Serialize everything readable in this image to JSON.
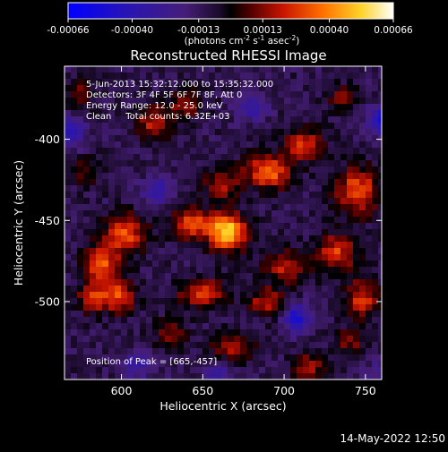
{
  "chart_data": {
    "type": "heatmap",
    "title": "Reconstructed RHESSI Image",
    "xlabel": "Heliocentric X (arcsec)",
    "ylabel": "Heliocentric Y (arcsec)",
    "x_ticks": [
      "600",
      "650",
      "700",
      "750"
    ],
    "y_ticks": [
      "-400",
      "-450",
      "-500"
    ],
    "xlim": [
      565,
      760
    ],
    "ylim": [
      -548,
      -355
    ],
    "colorbar": {
      "ticks": [
        "-0.00066",
        "-0.00040",
        "-0.00013",
        "0.00013",
        "0.00040",
        "0.00066"
      ],
      "range": [
        -0.00066,
        0.00066
      ],
      "units_label": "(photons cm<sup>-2</sup> s<sup>-1</sup> asec<sup>-2</sup>)",
      "units_text": "(photons cm-2 s-1 asec-2)"
    },
    "annotations": [
      "5-Jun-2013 15:32:12.000 to 15:35:32.000",
      "Detectors: 3F 4F 5F 6F 7F 8F, Att 0",
      "Energy Range: 12.0 - 25.0 keV",
      "Clean     Total counts: 6.32E+03"
    ],
    "peak_label": "Position of Peak = [665,-457]",
    "peak": {
      "x": 665,
      "y": -457
    },
    "timestamp": "14-May-2022 12:50",
    "hotspots": [
      {
        "x": 665,
        "y": -457,
        "amp": 0.00066,
        "sx": 8,
        "sy": 8
      },
      {
        "x": 642,
        "y": -452,
        "amp": 0.00042,
        "sx": 8,
        "sy": 7
      },
      {
        "x": 602,
        "y": -458,
        "amp": 0.0004,
        "sx": 9,
        "sy": 8
      },
      {
        "x": 588,
        "y": -478,
        "amp": 0.00042,
        "sx": 8,
        "sy": 9
      },
      {
        "x": 598,
        "y": -497,
        "amp": 0.00038,
        "sx": 7,
        "sy": 7
      },
      {
        "x": 582,
        "y": -498,
        "amp": 0.00032,
        "sx": 6,
        "sy": 6
      },
      {
        "x": 690,
        "y": -420,
        "amp": 0.00045,
        "sx": 10,
        "sy": 7
      },
      {
        "x": 712,
        "y": -403,
        "amp": 0.00035,
        "sx": 8,
        "sy": 7
      },
      {
        "x": 662,
        "y": -428,
        "amp": 0.00028,
        "sx": 8,
        "sy": 6
      },
      {
        "x": 745,
        "y": -432,
        "amp": 0.00042,
        "sx": 9,
        "sy": 10
      },
      {
        "x": 732,
        "y": -470,
        "amp": 0.00036,
        "sx": 9,
        "sy": 8
      },
      {
        "x": 748,
        "y": -498,
        "amp": 0.00035,
        "sx": 7,
        "sy": 8
      },
      {
        "x": 700,
        "y": -478,
        "amp": 0.0003,
        "sx": 9,
        "sy": 7
      },
      {
        "x": 650,
        "y": -495,
        "amp": 0.00038,
        "sx": 10,
        "sy": 6
      },
      {
        "x": 690,
        "y": -500,
        "amp": 0.00032,
        "sx": 8,
        "sy": 6
      },
      {
        "x": 620,
        "y": -390,
        "amp": 0.0003,
        "sx": 8,
        "sy": 7
      },
      {
        "x": 640,
        "y": -378,
        "amp": 0.00026,
        "sx": 7,
        "sy": 6
      },
      {
        "x": 668,
        "y": -528,
        "amp": 0.00028,
        "sx": 9,
        "sy": 6
      },
      {
        "x": 630,
        "y": -520,
        "amp": 0.00024,
        "sx": 7,
        "sy": 6
      },
      {
        "x": 715,
        "y": -540,
        "amp": 0.00026,
        "sx": 7,
        "sy": 6
      },
      {
        "x": 740,
        "y": -525,
        "amp": 0.00022,
        "sx": 6,
        "sy": 6
      },
      {
        "x": 578,
        "y": -420,
        "amp": 0.00018,
        "sx": 6,
        "sy": 6
      },
      {
        "x": 575,
        "y": -372,
        "amp": 0.00022,
        "sx": 6,
        "sy": 6
      },
      {
        "x": 735,
        "y": -375,
        "amp": 0.0002,
        "sx": 6,
        "sy": 6
      },
      {
        "x": 622,
        "y": -432,
        "amp": -0.00026,
        "sx": 7,
        "sy": 6
      },
      {
        "x": 760,
        "y": -388,
        "amp": -0.0004,
        "sx": 6,
        "sy": 6
      },
      {
        "x": 708,
        "y": -510,
        "amp": -0.00038,
        "sx": 6,
        "sy": 6
      },
      {
        "x": 570,
        "y": -395,
        "amp": -0.0003,
        "sx": 6,
        "sy": 6
      },
      {
        "x": 680,
        "y": -380,
        "amp": -0.00024,
        "sx": 7,
        "sy": 6
      },
      {
        "x": 660,
        "y": -545,
        "amp": -0.0002,
        "sx": 7,
        "sy": 6
      },
      {
        "x": 610,
        "y": -540,
        "amp": -0.0002,
        "sx": 7,
        "sy": 6
      },
      {
        "x": 760,
        "y": -545,
        "amp": -0.00018,
        "sx": 7,
        "sy": 6
      }
    ],
    "grid": false,
    "legend": "none"
  }
}
